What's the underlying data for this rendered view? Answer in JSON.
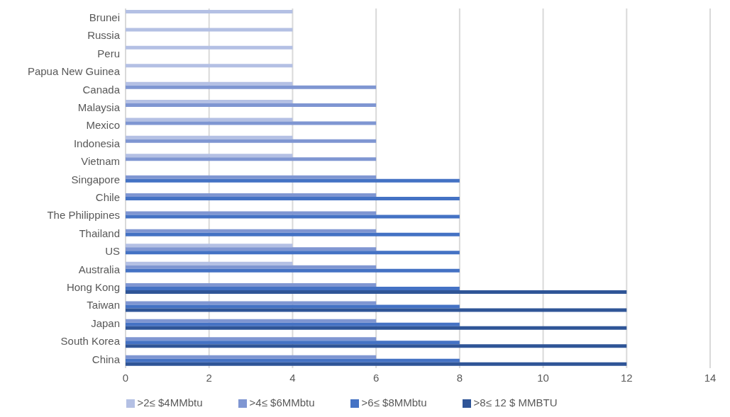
{
  "chart_data": {
    "type": "bar",
    "orientation": "horizontal",
    "categories": [
      "Brunei",
      "Russia",
      "Peru",
      "Papua New Guinea",
      "Canada",
      "Malaysia",
      "Mexico",
      "Indonesia",
      "Vietnam",
      "Singapore",
      "Chile",
      "The Philippines",
      "Thailand",
      "US",
      "Australia",
      "Hong Kong",
      "Taiwan",
      "Japan",
      "South Korea",
      "China"
    ],
    "series": [
      {
        "name": ">2≤ $4MMbtu",
        "color": "#b4c0e4",
        "values": [
          4,
          4,
          4,
          4,
          4,
          4,
          4,
          4,
          4,
          null,
          null,
          null,
          null,
          4,
          4,
          null,
          null,
          null,
          null,
          null
        ]
      },
      {
        "name": ">4≤ $6MMbtu",
        "color": "#7f96d2",
        "values": [
          null,
          null,
          null,
          null,
          6,
          6,
          6,
          6,
          6,
          6,
          6,
          6,
          6,
          6,
          6,
          6,
          6,
          6,
          6,
          6
        ]
      },
      {
        "name": ">6≤ $8MMbtu",
        "color": "#4472c4",
        "values": [
          null,
          null,
          null,
          null,
          null,
          null,
          null,
          null,
          null,
          8,
          8,
          8,
          8,
          8,
          8,
          8,
          8,
          8,
          8,
          8
        ]
      },
      {
        "name": ">8≤ 12 $ MMBTU",
        "color": "#2f5597",
        "values": [
          null,
          null,
          null,
          null,
          null,
          null,
          null,
          null,
          null,
          null,
          null,
          null,
          null,
          null,
          null,
          12,
          12,
          12,
          12,
          12
        ]
      }
    ],
    "xlim": [
      0,
      14
    ],
    "xticks": [
      0,
      2,
      4,
      6,
      8,
      10,
      12,
      14
    ],
    "grid": "x",
    "legend": "bottom"
  }
}
